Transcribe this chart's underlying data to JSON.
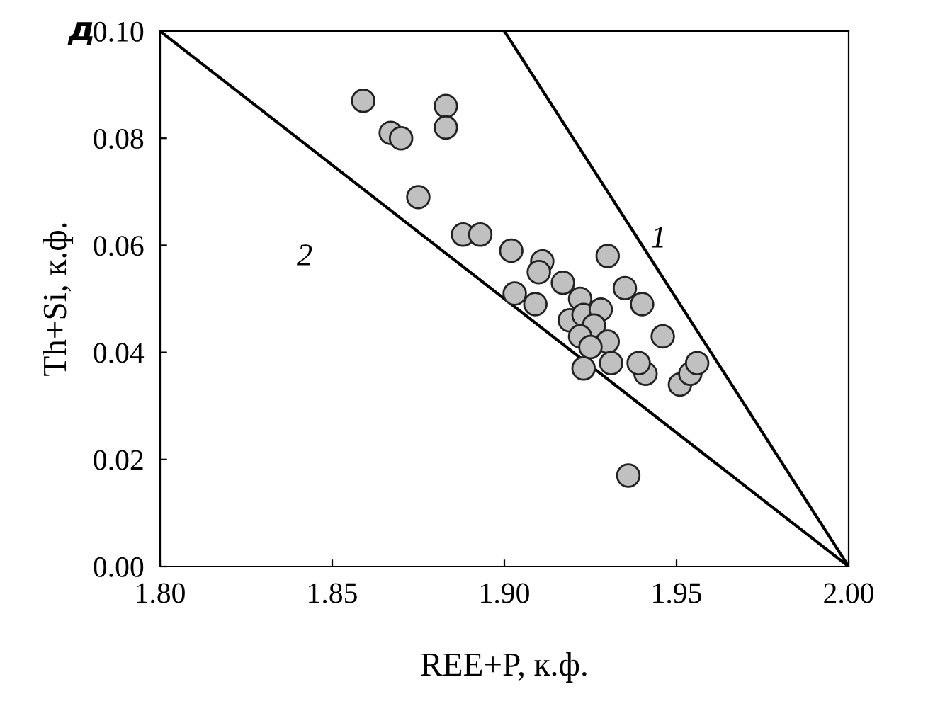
{
  "chart_data": {
    "type": "scatter",
    "title": "д",
    "xlabel": "REE+P, к.ф.",
    "ylabel": "Th+Si, к.ф.",
    "xlim": [
      1.8,
      2.0
    ],
    "xticks": [
      {
        "value": 1.8,
        "label": "1.80"
      },
      {
        "value": 1.85,
        "label": "1.85"
      },
      {
        "value": 1.9,
        "label": "1.90"
      },
      {
        "value": 1.95,
        "label": "1.95"
      },
      {
        "value": 2.0,
        "label": "2.00"
      }
    ],
    "ylim": [
      0,
      0.1
    ],
    "yticks": [
      {
        "value": 0,
        "label": "0.00"
      },
      {
        "value": 0.02,
        "label": "0.02"
      },
      {
        "value": 0.04,
        "label": "0.04"
      },
      {
        "value": 0.06,
        "label": "0.06"
      },
      {
        "value": 0.08,
        "label": "0.08"
      },
      {
        "value": 0.1,
        "label": "0.10"
      }
    ],
    "grid": false,
    "legend": false,
    "marker": "circle",
    "series": [
      {
        "type": "line",
        "name": "1",
        "color": "#000000",
        "x": [
          1.9,
          2.0
        ],
        "values": [
          0.1,
          0
        ],
        "marker": "none"
      },
      {
        "type": "line",
        "name": "2",
        "color": "#000000",
        "x": [
          1.8,
          2.0
        ],
        "values": [
          0.1,
          0
        ],
        "marker": "none"
      },
      {
        "color": "#c0c0c0",
        "x": [
          1.859,
          1.867,
          1.87,
          1.883,
          1.883,
          1.875,
          1.888,
          1.893,
          1.902,
          1.911,
          1.91,
          1.917,
          1.93,
          1.903,
          1.909,
          1.922,
          1.935,
          1.94,
          1.919,
          1.923,
          1.928,
          1.926,
          1.922,
          1.93,
          1.925,
          1.946,
          1.931,
          1.941,
          1.939,
          1.951,
          1.954,
          1.956,
          1.923,
          1.936
        ],
        "values": [
          0.087,
          0.081,
          0.08,
          0.086,
          0.082,
          0.069,
          0.062,
          0.062,
          0.059,
          0.057,
          0.055,
          0.053,
          0.058,
          0.051,
          0.049,
          0.05,
          0.052,
          0.049,
          0.046,
          0.047,
          0.048,
          0.045,
          0.043,
          0.042,
          0.041,
          0.043,
          0.038,
          0.036,
          0.038,
          0.034,
          0.036,
          0.038,
          0.037,
          0.017
        ]
      }
    ]
  }
}
